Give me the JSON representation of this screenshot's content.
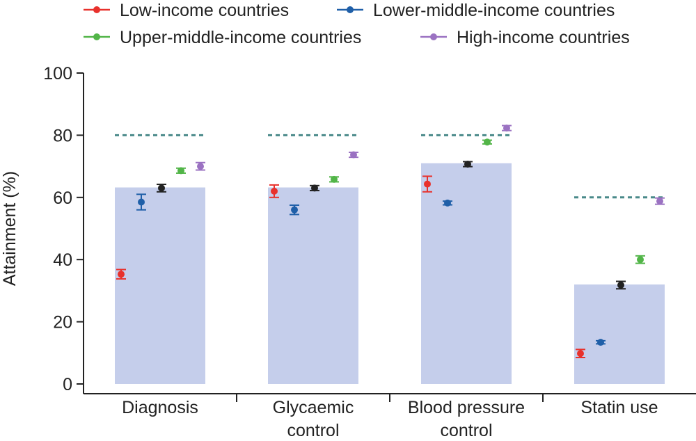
{
  "chart_data": {
    "type": "bar",
    "ylabel": "Attainment (%)",
    "ylim": [
      0,
      100
    ],
    "yticks": [
      0,
      20,
      40,
      60,
      80,
      100
    ],
    "grid": false,
    "legend_position": "top",
    "categories": [
      [
        "Diagnosis"
      ],
      [
        "Glycaemic",
        "control"
      ],
      [
        "Blood pressure",
        "control"
      ],
      [
        "Statin use"
      ]
    ],
    "overall": {
      "values": [
        63.2,
        63.2,
        71.0,
        32.0
      ],
      "points": [
        63.0,
        63.0,
        70.7,
        31.8
      ],
      "errors": [
        1.2,
        0.8,
        0.8,
        1.2
      ],
      "bar_color": "#c5ceeb",
      "marker_color": "#222222"
    },
    "targets": [
      80,
      80,
      80,
      60
    ],
    "target_color": "#4a8a8a",
    "series": [
      {
        "name": "Low-income countries",
        "color": "#e8312c",
        "values": [
          35.3,
          62.0,
          64.3,
          9.8
        ],
        "errors": [
          1.5,
          2.0,
          2.5,
          1.3
        ]
      },
      {
        "name": "Lower-middle-income countries",
        "color": "#1f5fa8",
        "values": [
          58.5,
          56.0,
          58.2,
          13.4
        ],
        "errors": [
          2.5,
          1.5,
          0.6,
          0.5
        ]
      },
      {
        "name": "Upper-middle-income countries",
        "color": "#52b548",
        "values": [
          68.6,
          65.8,
          77.8,
          40.0
        ],
        "errors": [
          0.8,
          0.8,
          0.6,
          1.2
        ]
      },
      {
        "name": "High-income countries",
        "color": "#9b72c2",
        "values": [
          70.0,
          73.7,
          82.3,
          58.8
        ],
        "errors": [
          1.2,
          0.8,
          0.8,
          1.0
        ]
      }
    ]
  }
}
